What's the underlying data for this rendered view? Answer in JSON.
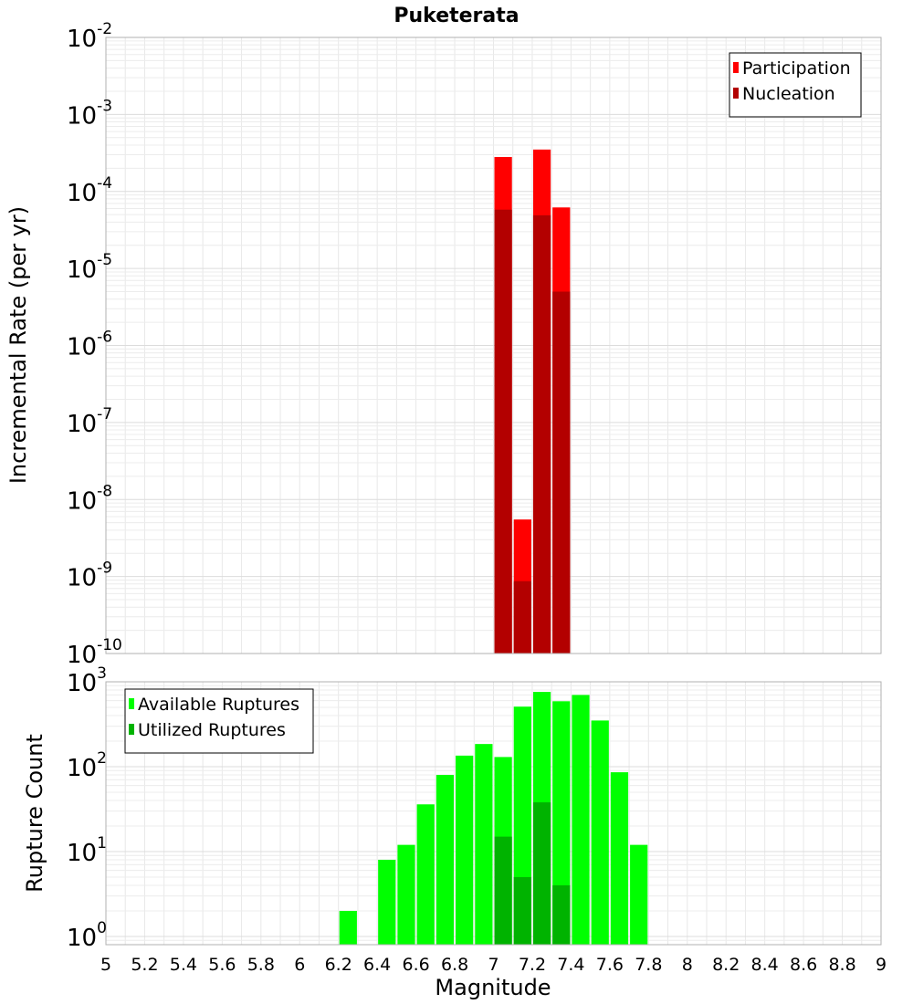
{
  "chart_data": [
    {
      "type": "bar",
      "title": "Puketerata",
      "xlabel": "Magnitude",
      "ylabel": "Incremental Rate (per yr)",
      "yscale": "log",
      "ylim": [
        1e-10,
        0.01
      ],
      "xlim": [
        5,
        9
      ],
      "grid": true,
      "legend_position": "top-right",
      "y_tick_exponents": [
        "-10",
        "-9",
        "-8",
        "-7",
        "-6",
        "-5",
        "-4",
        "-3",
        "-2"
      ],
      "y_tick_base": "10",
      "series": [
        {
          "name": "Participation",
          "color": "#ff0000",
          "points": [
            {
              "x": 7.05,
              "y": 0.00028
            },
            {
              "x": 7.15,
              "y": 5.5e-09
            },
            {
              "x": 7.25,
              "y": 0.00035
            },
            {
              "x": 7.35,
              "y": 6.2e-05
            }
          ]
        },
        {
          "name": "Nucleation",
          "color": "#b30000",
          "points": [
            {
              "x": 7.05,
              "y": 5.8e-05
            },
            {
              "x": 7.15,
              "y": 8.7e-10
            },
            {
              "x": 7.25,
              "y": 4.9e-05
            },
            {
              "x": 7.35,
              "y": 5e-06
            }
          ]
        }
      ]
    },
    {
      "type": "bar",
      "xlabel": "Magnitude",
      "ylabel": "Rupture Count",
      "yscale": "log",
      "ylim": [
        0.8,
        1000
      ],
      "xlim": [
        5,
        9
      ],
      "grid": true,
      "legend_position": "top-left",
      "y_tick_exponents": [
        "0",
        "1",
        "2",
        "3"
      ],
      "y_tick_base": "10",
      "x_ticks": [
        "5",
        "5.2",
        "5.4",
        "5.6",
        "5.8",
        "6",
        "6.2",
        "6.4",
        "6.6",
        "6.8",
        "7",
        "7.2",
        "7.4",
        "7.6",
        "7.8",
        "8",
        "8.2",
        "8.4",
        "8.6",
        "8.8",
        "9"
      ],
      "series": [
        {
          "name": "Available Ruptures",
          "color": "#00ff00",
          "points": [
            {
              "x": 6.25,
              "y": 2
            },
            {
              "x": 6.45,
              "y": 8
            },
            {
              "x": 6.55,
              "y": 12
            },
            {
              "x": 6.65,
              "y": 36
            },
            {
              "x": 6.75,
              "y": 80
            },
            {
              "x": 6.85,
              "y": 135
            },
            {
              "x": 6.95,
              "y": 185
            },
            {
              "x": 7.05,
              "y": 130
            },
            {
              "x": 7.15,
              "y": 510
            },
            {
              "x": 7.25,
              "y": 760
            },
            {
              "x": 7.35,
              "y": 590
            },
            {
              "x": 7.45,
              "y": 700
            },
            {
              "x": 7.55,
              "y": 350
            },
            {
              "x": 7.65,
              "y": 86
            },
            {
              "x": 7.75,
              "y": 12
            }
          ]
        },
        {
          "name": "Utilized Ruptures",
          "color": "#00b300",
          "points": [
            {
              "x": 7.05,
              "y": 15
            },
            {
              "x": 7.15,
              "y": 5
            },
            {
              "x": 7.25,
              "y": 38
            },
            {
              "x": 7.35,
              "y": 4
            }
          ]
        }
      ]
    }
  ]
}
